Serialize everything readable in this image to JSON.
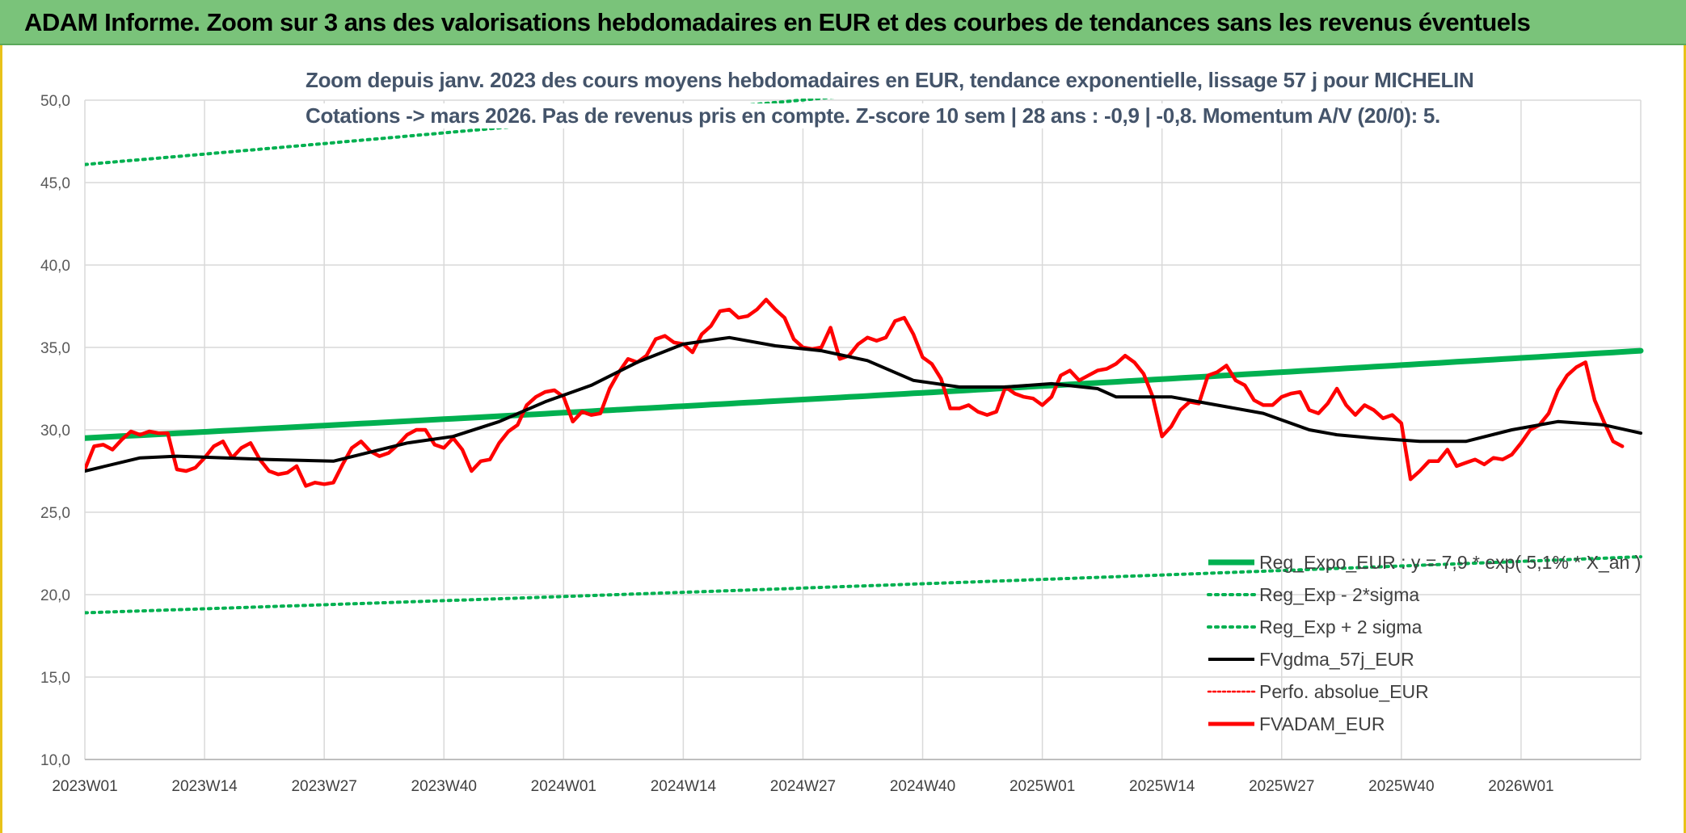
{
  "header": {
    "title": "ADAM Informe. Zoom sur 3 ans des valorisations hebdomadaires en EUR et des courbes de tendances sans les revenus éventuels"
  },
  "colors": {
    "banner": "#7ac37a",
    "reg_expo": "#00b050",
    "fvgdma": "#000000",
    "fvadam": "#ff0000",
    "subtitle": "#44546a",
    "grid": "#d9d9d9"
  },
  "chart_data": {
    "type": "line",
    "subtitle_line1": "Zoom depuis janv. 2023 des cours moyens hebdomadaires en EUR, tendance exponentielle, lissage 57 j pour MICHELIN",
    "subtitle_line2": "Cotations -> mars 2026. Pas de revenus pris en compte. Z-score 10 sem | 28 ans : -0,9 | -0,8. Momentum A/V (20/0): 5.",
    "ylim": [
      10,
      50
    ],
    "y_ticks": [
      "10,0",
      "15,0",
      "20,0",
      "25,0",
      "30,0",
      "35,0",
      "40,0",
      "45,0",
      "50,0"
    ],
    "x_tick_labels": [
      "2023W01",
      "2023W14",
      "2023W27",
      "2023W40",
      "2024W01",
      "2024W14",
      "2024W27",
      "2024W40",
      "2025W01",
      "2025W14",
      "2025W27",
      "2025W40",
      "2026W01"
    ],
    "weeks_count": 170,
    "grid": true,
    "legend_position": "bottom-right",
    "series": [
      {
        "name": "Reg_Expo_EUR : y = 7,9 * exp( 5,1% * X_an )",
        "style": "thick",
        "color": "#00b050",
        "start": 29.5,
        "end": 34.8
      },
      {
        "name": "Reg_Exp - 2*sigma",
        "style": "dotted",
        "color": "#00b050",
        "start": 18.9,
        "end": 22.3
      },
      {
        "name": "Reg_Exp + 2 sigma",
        "style": "dotted",
        "color": "#00b050",
        "start": 46.1,
        "end": 55.0
      },
      {
        "name": "FVgdma_57j_EUR",
        "style": "solid",
        "color": "#000000",
        "points": [
          [
            0,
            27.5
          ],
          [
            6,
            28.3
          ],
          [
            10,
            28.4
          ],
          [
            20,
            28.2
          ],
          [
            27,
            28.1
          ],
          [
            35,
            29.2
          ],
          [
            40,
            29.6
          ],
          [
            45,
            30.5
          ],
          [
            50,
            31.7
          ],
          [
            55,
            32.7
          ],
          [
            60,
            34.1
          ],
          [
            65,
            35.2
          ],
          [
            70,
            35.6
          ],
          [
            75,
            35.1
          ],
          [
            80,
            34.8
          ],
          [
            85,
            34.2
          ],
          [
            90,
            33.0
          ],
          [
            95,
            32.6
          ],
          [
            100,
            32.6
          ],
          [
            105,
            32.8
          ],
          [
            110,
            32.5
          ],
          [
            112,
            32.0
          ],
          [
            118,
            32.0
          ],
          [
            122,
            31.6
          ],
          [
            128,
            31.0
          ],
          [
            133,
            30.0
          ],
          [
            136,
            29.7
          ],
          [
            140,
            29.5
          ],
          [
            145,
            29.3
          ],
          [
            150,
            29.3
          ],
          [
            155,
            30.0
          ],
          [
            160,
            30.5
          ],
          [
            165,
            30.3
          ],
          [
            169,
            29.8
          ]
        ]
      },
      {
        "name": "Perfo. absolue_EUR",
        "style": "dotted",
        "color": "#ff0000",
        "points": []
      },
      {
        "name": "FVADAM_EUR",
        "style": "thick",
        "color": "#ff0000",
        "points": [
          [
            0,
            27.6
          ],
          [
            1,
            29.0
          ],
          [
            2,
            29.1
          ],
          [
            3,
            28.8
          ],
          [
            4,
            29.4
          ],
          [
            5,
            29.9
          ],
          [
            6,
            29.7
          ],
          [
            7,
            29.9
          ],
          [
            8,
            29.8
          ],
          [
            9,
            29.8
          ],
          [
            10,
            27.6
          ],
          [
            11,
            27.5
          ],
          [
            12,
            27.7
          ],
          [
            13,
            28.3
          ],
          [
            14,
            29.0
          ],
          [
            15,
            29.3
          ],
          [
            16,
            28.3
          ],
          [
            17,
            28.9
          ],
          [
            18,
            29.2
          ],
          [
            19,
            28.2
          ],
          [
            20,
            27.5
          ],
          [
            21,
            27.3
          ],
          [
            22,
            27.4
          ],
          [
            23,
            27.8
          ],
          [
            24,
            26.6
          ],
          [
            25,
            26.8
          ],
          [
            26,
            26.7
          ],
          [
            27,
            26.8
          ],
          [
            28,
            27.9
          ],
          [
            29,
            28.9
          ],
          [
            30,
            29.3
          ],
          [
            31,
            28.7
          ],
          [
            32,
            28.4
          ],
          [
            33,
            28.6
          ],
          [
            34,
            29.1
          ],
          [
            35,
            29.7
          ],
          [
            36,
            30.0
          ],
          [
            37,
            30.0
          ],
          [
            38,
            29.1
          ],
          [
            39,
            28.9
          ],
          [
            40,
            29.5
          ],
          [
            41,
            28.8
          ],
          [
            42,
            27.5
          ],
          [
            43,
            28.1
          ],
          [
            44,
            28.2
          ],
          [
            45,
            29.2
          ],
          [
            46,
            29.9
          ],
          [
            47,
            30.3
          ],
          [
            48,
            31.5
          ],
          [
            49,
            32.0
          ],
          [
            50,
            32.3
          ],
          [
            51,
            32.4
          ],
          [
            52,
            32.0
          ],
          [
            53,
            30.5
          ],
          [
            54,
            31.1
          ],
          [
            55,
            30.9
          ],
          [
            56,
            31.0
          ],
          [
            57,
            32.5
          ],
          [
            58,
            33.5
          ],
          [
            59,
            34.3
          ],
          [
            60,
            34.1
          ],
          [
            61,
            34.5
          ],
          [
            62,
            35.5
          ],
          [
            63,
            35.7
          ],
          [
            64,
            35.3
          ],
          [
            65,
            35.2
          ],
          [
            66,
            34.7
          ],
          [
            67,
            35.8
          ],
          [
            68,
            36.3
          ],
          [
            69,
            37.2
          ],
          [
            70,
            37.3
          ],
          [
            71,
            36.8
          ],
          [
            72,
            36.9
          ],
          [
            73,
            37.3
          ],
          [
            74,
            37.9
          ],
          [
            75,
            37.3
          ],
          [
            76,
            36.8
          ],
          [
            77,
            35.5
          ],
          [
            78,
            35.0
          ],
          [
            79,
            34.9
          ],
          [
            80,
            35.0
          ],
          [
            81,
            36.2
          ],
          [
            82,
            34.3
          ],
          [
            83,
            34.5
          ],
          [
            84,
            35.2
          ],
          [
            85,
            35.6
          ],
          [
            86,
            35.4
          ],
          [
            87,
            35.6
          ],
          [
            88,
            36.6
          ],
          [
            89,
            36.8
          ],
          [
            90,
            35.8
          ],
          [
            91,
            34.4
          ],
          [
            92,
            34.0
          ],
          [
            93,
            33.1
          ],
          [
            94,
            31.3
          ],
          [
            95,
            31.3
          ],
          [
            96,
            31.5
          ],
          [
            97,
            31.1
          ],
          [
            98,
            30.9
          ],
          [
            99,
            31.1
          ],
          [
            100,
            32.6
          ],
          [
            101,
            32.2
          ],
          [
            102,
            32.0
          ],
          [
            103,
            31.9
          ],
          [
            104,
            31.5
          ],
          [
            105,
            32.0
          ],
          [
            106,
            33.3
          ],
          [
            107,
            33.6
          ],
          [
            108,
            33.0
          ],
          [
            109,
            33.3
          ],
          [
            110,
            33.6
          ],
          [
            111,
            33.7
          ],
          [
            112,
            34.0
          ],
          [
            113,
            34.5
          ],
          [
            114,
            34.1
          ],
          [
            115,
            33.4
          ],
          [
            116,
            32.0
          ],
          [
            117,
            29.6
          ],
          [
            118,
            30.2
          ],
          [
            119,
            31.2
          ],
          [
            120,
            31.7
          ],
          [
            121,
            31.6
          ],
          [
            122,
            33.3
          ],
          [
            123,
            33.5
          ],
          [
            124,
            33.9
          ],
          [
            125,
            33.0
          ],
          [
            126,
            32.7
          ],
          [
            127,
            31.8
          ],
          [
            128,
            31.5
          ],
          [
            129,
            31.5
          ],
          [
            130,
            32.0
          ],
          [
            131,
            32.2
          ],
          [
            132,
            32.3
          ],
          [
            133,
            31.2
          ],
          [
            134,
            31.0
          ],
          [
            135,
            31.6
          ],
          [
            136,
            32.5
          ],
          [
            137,
            31.5
          ],
          [
            138,
            30.9
          ],
          [
            139,
            31.5
          ],
          [
            140,
            31.2
          ],
          [
            141,
            30.7
          ],
          [
            142,
            30.9
          ],
          [
            143,
            30.4
          ],
          [
            144,
            27.0
          ],
          [
            145,
            27.5
          ],
          [
            146,
            28.1
          ],
          [
            147,
            28.1
          ],
          [
            148,
            28.8
          ],
          [
            149,
            27.8
          ],
          [
            150,
            28.0
          ],
          [
            151,
            28.2
          ],
          [
            152,
            27.9
          ],
          [
            153,
            28.3
          ],
          [
            154,
            28.2
          ],
          [
            155,
            28.5
          ],
          [
            156,
            29.2
          ],
          [
            157,
            30.0
          ],
          [
            158,
            30.3
          ],
          [
            159,
            31.0
          ],
          [
            160,
            32.4
          ],
          [
            161,
            33.3
          ],
          [
            162,
            33.8
          ],
          [
            163,
            34.1
          ],
          [
            164,
            31.8
          ],
          [
            165,
            30.5
          ],
          [
            166,
            29.3
          ],
          [
            167,
            29.0
          ]
        ]
      }
    ]
  }
}
